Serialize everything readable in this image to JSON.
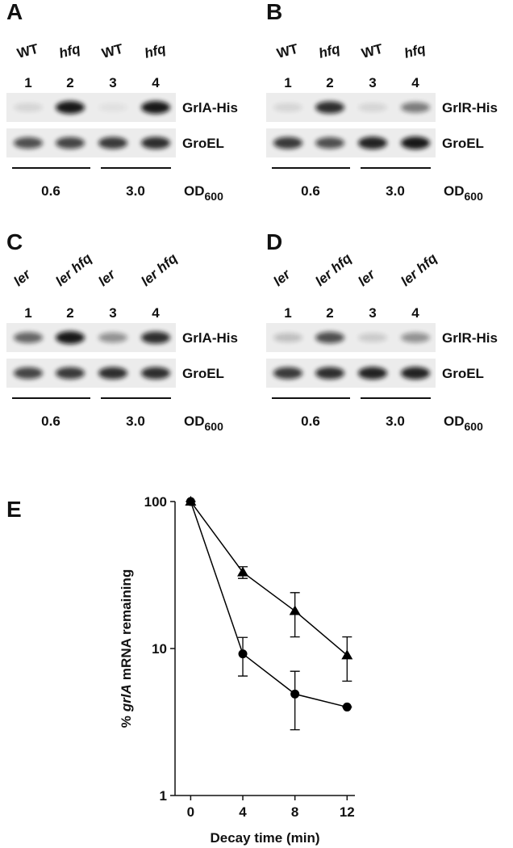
{
  "panels": [
    {
      "letter": "A",
      "lanes": [
        {
          "label": "WT",
          "italic": false
        },
        {
          "label": "hfq",
          "italic": true
        },
        {
          "label": "WT",
          "italic": false
        },
        {
          "label": "hfq",
          "italic": true
        }
      ],
      "lane_numbers": [
        1,
        2,
        3,
        4
      ],
      "rows": [
        "GrlA-His",
        "GroEL"
      ],
      "groups": [
        "0.6",
        "3.0"
      ],
      "od": "OD",
      "od_subscript": "600"
    },
    {
      "letter": "B",
      "lanes": [
        {
          "label": "WT",
          "italic": false
        },
        {
          "label": "hfq",
          "italic": true
        },
        {
          "label": "WT",
          "italic": false
        },
        {
          "label": "hfq",
          "italic": true
        }
      ],
      "lane_numbers": [
        1,
        2,
        3,
        4
      ],
      "rows": [
        "GrlR-His",
        "GroEL"
      ],
      "groups": [
        "0.6",
        "3.0"
      ],
      "od": "OD",
      "od_subscript": "600"
    },
    {
      "letter": "C",
      "lanes": [
        {
          "label": "ler",
          "italic": true
        },
        {
          "label": "ler hfq",
          "italic": true
        },
        {
          "label": "ler",
          "italic": true
        },
        {
          "label": "ler hfq",
          "italic": true
        }
      ],
      "lane_numbers": [
        1,
        2,
        3,
        4
      ],
      "rows": [
        "GrlA-His",
        "GroEL"
      ],
      "groups": [
        "0.6",
        "3.0"
      ],
      "od": "OD",
      "od_subscript": "600"
    },
    {
      "letter": "D",
      "lanes": [
        {
          "label": "ler",
          "italic": true
        },
        {
          "label": "ler hfq",
          "italic": true
        },
        {
          "label": "ler",
          "italic": true
        },
        {
          "label": "ler hfq",
          "italic": true
        }
      ],
      "lane_numbers": [
        1,
        2,
        3,
        4
      ],
      "rows": [
        "GrlR-His",
        "GroEL"
      ],
      "groups": [
        "0.6",
        "3.0"
      ],
      "od": "OD",
      "od_subscript": "600"
    }
  ],
  "chart_data": {
    "type": "line",
    "panel_letter": "E",
    "x": [
      0,
      4,
      8,
      12
    ],
    "series": [
      {
        "marker": "triangle",
        "color": "#000000",
        "values": [
          100,
          33,
          18,
          9
        ],
        "errors": [
          0,
          3,
          6,
          3
        ]
      },
      {
        "marker": "circle",
        "color": "#000000",
        "values": [
          100,
          9.2,
          4.9,
          4.0
        ],
        "errors": [
          0,
          2.7,
          2.1,
          0
        ]
      }
    ],
    "xlim": [
      -1.2,
      12.6
    ],
    "ylim": [
      1,
      100
    ],
    "xticks": [
      0,
      4,
      8,
      12
    ],
    "yticks": [
      1,
      10,
      100
    ],
    "log_y": true,
    "xlabel": "Decay time (min)",
    "ylabel_parts": [
      {
        "text": "%",
        "italic": false
      },
      {
        "text": "grlA",
        "italic": true
      },
      {
        "text": "mRNA remaining",
        "italic": false
      }
    ]
  }
}
